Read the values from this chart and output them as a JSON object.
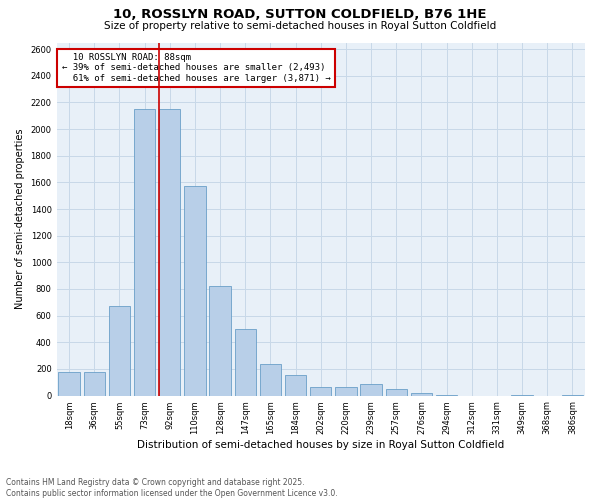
{
  "title": "10, ROSSLYN ROAD, SUTTON COLDFIELD, B76 1HE",
  "subtitle": "Size of property relative to semi-detached houses in Royal Sutton Coldfield",
  "xlabel": "Distribution of semi-detached houses by size in Royal Sutton Coldfield",
  "ylabel": "Number of semi-detached properties",
  "categories": [
    "18sqm",
    "36sqm",
    "55sqm",
    "73sqm",
    "92sqm",
    "110sqm",
    "128sqm",
    "147sqm",
    "165sqm",
    "184sqm",
    "202sqm",
    "220sqm",
    "239sqm",
    "257sqm",
    "276sqm",
    "294sqm",
    "312sqm",
    "331sqm",
    "349sqm",
    "368sqm",
    "386sqm"
  ],
  "values": [
    180,
    180,
    670,
    2150,
    2150,
    1570,
    820,
    500,
    240,
    155,
    65,
    65,
    90,
    50,
    20,
    5,
    0,
    0,
    5,
    0,
    5
  ],
  "bar_color": "#b8cfe8",
  "bar_edge_color": "#6a9fc8",
  "property_label": "10 ROSSLYN ROAD: 88sqm",
  "pct_smaller": 39,
  "pct_larger": 61,
  "n_smaller": 2493,
  "n_larger": 3871,
  "vline_color": "#cc0000",
  "vline_bar_index": 4,
  "annotation_box_color": "#cc0000",
  "ylim": [
    0,
    2650
  ],
  "yticks": [
    0,
    200,
    400,
    600,
    800,
    1000,
    1200,
    1400,
    1600,
    1800,
    2000,
    2200,
    2400,
    2600
  ],
  "grid_color": "#c8d8e8",
  "bg_color": "#e8f0f8",
  "footnote": "Contains HM Land Registry data © Crown copyright and database right 2025.\nContains public sector information licensed under the Open Government Licence v3.0.",
  "title_fontsize": 9.5,
  "subtitle_fontsize": 7.5,
  "xlabel_fontsize": 7.5,
  "ylabel_fontsize": 7,
  "tick_fontsize": 6,
  "annot_fontsize": 6.5,
  "footnote_fontsize": 5.5
}
